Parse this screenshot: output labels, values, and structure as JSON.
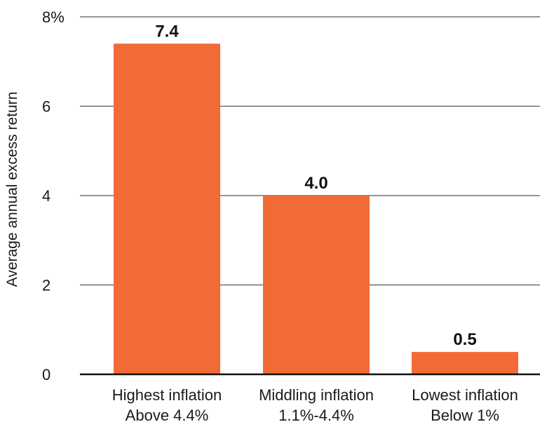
{
  "chart_data": {
    "type": "bar",
    "categories": [
      [
        "Highest inflation",
        "Above 4.4%"
      ],
      [
        "Middling inflation",
        "1.1%-4.4%"
      ],
      [
        "Lowest inflation",
        "Below 1%"
      ]
    ],
    "values": [
      7.4,
      4.0,
      0.5
    ],
    "value_labels": [
      "7.4",
      "4.0",
      "0.5"
    ],
    "title": "",
    "xlabel": "",
    "ylabel": "Average annual excess return",
    "ylim": [
      0,
      8
    ],
    "yticks": [
      {
        "value": 0,
        "label": "0"
      },
      {
        "value": 2,
        "label": "2"
      },
      {
        "value": 4,
        "label": "4"
      },
      {
        "value": 6,
        "label": "6"
      },
      {
        "value": 8,
        "label": "8%"
      }
    ],
    "grid": true,
    "legend": "none",
    "colors": {
      "bar": "#F26A35",
      "grid": "#555555",
      "axis": "#111111"
    }
  }
}
